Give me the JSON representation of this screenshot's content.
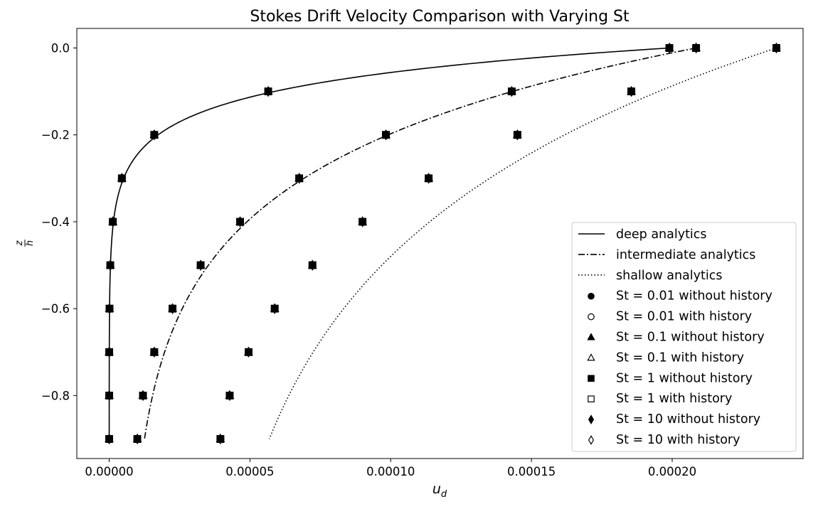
{
  "chart_data": {
    "type": "line",
    "title": "Stokes Drift Velocity Comparison with Varying St",
    "xlabel": "u_d",
    "ylabel": "z/h",
    "xlim": [
      -1.15e-05,
      0.0002465
    ],
    "ylim": [
      -0.945,
      0.045
    ],
    "xticks": [
      0,
      5e-05,
      0.0001,
      0.00015,
      0.0002
    ],
    "xtick_labels": [
      "0.00000",
      "0.00005",
      "0.00010",
      "0.00015",
      "0.00020"
    ],
    "yticks": [
      0,
      -0.2,
      -0.4,
      -0.6,
      -0.8
    ],
    "ytick_labels": [
      "0.0",
      "−0.2",
      "−0.4",
      "−0.6",
      "−0.8"
    ],
    "grid": false,
    "legend_position": "lower right",
    "curves": [
      {
        "name": "deep analytics",
        "style": "solid",
        "U0": 0.000199,
        "decay": 12.2,
        "offset": 0
      },
      {
        "name": "intermediate analytics",
        "style": "dashdot",
        "U0": 0.0002085,
        "decay": 3.9,
        "offset": 6.5e-06
      },
      {
        "name": "shallow analytics",
        "style": "dotted",
        "U0": 0.000237,
        "decay": 2.25,
        "offset": 2.95e-05
      }
    ],
    "series": [
      {
        "name": "St = 0.01 without history",
        "marker": "circle",
        "filled": true
      },
      {
        "name": "St = 0.01 with history",
        "marker": "circle",
        "filled": false
      },
      {
        "name": "St = 0.1 without history",
        "marker": "triangle",
        "filled": true
      },
      {
        "name": "St = 0.1 with history",
        "marker": "triangle",
        "filled": false
      },
      {
        "name": "St = 1 without history",
        "marker": "square",
        "filled": true
      },
      {
        "name": "St = 1 with history",
        "marker": "square",
        "filled": false
      },
      {
        "name": "St = 10 without history",
        "marker": "diamond",
        "filled": true
      },
      {
        "name": "St = 10 with history",
        "marker": "diamond",
        "filled": false
      }
    ],
    "points": {
      "z": [
        0,
        -0.1,
        -0.2,
        -0.3,
        -0.4,
        -0.5,
        -0.6,
        -0.7,
        -0.8,
        -0.9
      ],
      "deep": [
        0.000199,
        5.65e-05,
        1.6e-05,
        4.5e-06,
        1.3e-06,
        4e-07,
        1e-07,
        0.0,
        0.0,
        0.0
      ],
      "intermediate": [
        0.0002085,
        0.000143,
        9.83e-05,
        6.75e-05,
        4.65e-05,
        3.25e-05,
        2.25e-05,
        1.6e-05,
        1.2e-05,
        1e-05
      ],
      "shallow": [
        0.000237,
        0.0001855,
        0.000145,
        0.0001135,
        9e-05,
        7.22e-05,
        5.88e-05,
        4.95e-05,
        4.28e-05,
        3.95e-05
      ]
    }
  },
  "colors": {
    "ink": "#000000",
    "background": "#ffffff"
  }
}
